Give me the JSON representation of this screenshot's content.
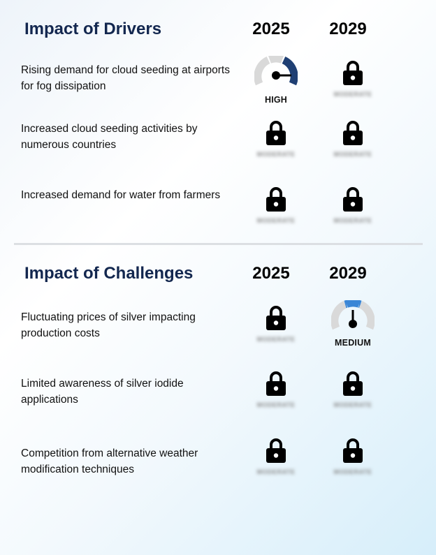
{
  "drivers": {
    "title": "Impact of Drivers",
    "year_1": "2025",
    "year_2": "2029",
    "rows": [
      {
        "label": "Rising demand for cloud seeding at airports for fog dissipation",
        "y2025": {
          "type": "gauge",
          "level": "HIGH"
        },
        "y2029": {
          "type": "locked"
        }
      },
      {
        "label": "Increased cloud seeding activities by numerous countries",
        "y2025": {
          "type": "locked"
        },
        "y2029": {
          "type": "locked"
        }
      },
      {
        "label": "Increased demand for water from farmers",
        "y2025": {
          "type": "locked"
        },
        "y2029": {
          "type": "locked"
        }
      }
    ]
  },
  "challenges": {
    "title": "Impact of Challenges",
    "year_1": "2025",
    "year_2": "2029",
    "rows": [
      {
        "label": "Fluctuating prices of silver impacting production costs",
        "y2025": {
          "type": "locked"
        },
        "y2029": {
          "type": "gauge",
          "level": "MEDIUM"
        }
      },
      {
        "label": "Limited awareness of silver iodide applications",
        "y2025": {
          "type": "locked"
        },
        "y2029": {
          "type": "locked"
        }
      },
      {
        "label": "Competition from alternative weather modification techniques",
        "y2025": {
          "type": "locked"
        },
        "y2029": {
          "type": "locked"
        }
      }
    ]
  },
  "locked_placeholder": "MODERATE",
  "colors": {
    "high": "#1f3f73",
    "medium": "#3a86d6",
    "track": "#d9d9d9",
    "needle": "#000000"
  },
  "icons": {
    "locked": "lock-icon",
    "gauge": "gauge-icon"
  }
}
